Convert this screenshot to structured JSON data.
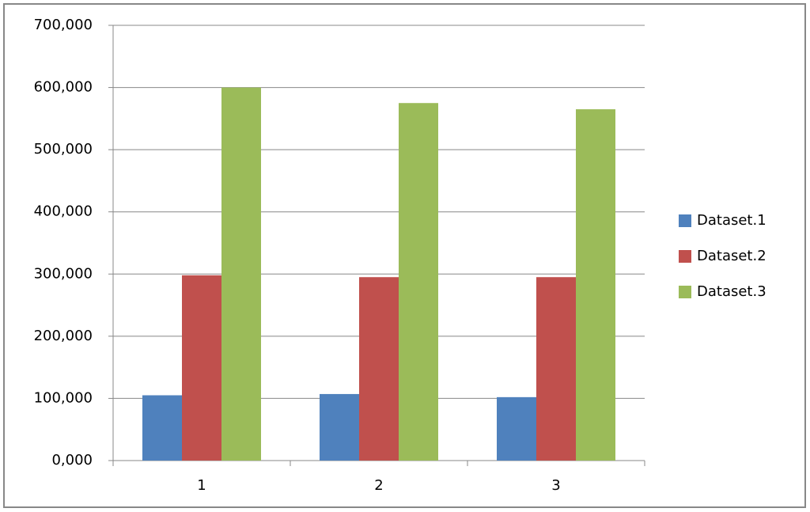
{
  "chart_data": {
    "type": "bar",
    "categories": [
      "1",
      "2",
      "3"
    ],
    "series": [
      {
        "name": "Dataset.1",
        "color": "#4f81bd",
        "values": [
          105000,
          107000,
          102000
        ]
      },
      {
        "name": "Dataset.2",
        "color": "#c0504d",
        "values": [
          298000,
          295000,
          295000
        ]
      },
      {
        "name": "Dataset.3",
        "color": "#9bbb59",
        "values": [
          600000,
          575000,
          565000
        ]
      }
    ],
    "ylim": [
      0,
      700000
    ],
    "yticks": [
      {
        "value": 0,
        "label": "0,000"
      },
      {
        "value": 100000,
        "label": "100,000"
      },
      {
        "value": 200000,
        "label": "200,000"
      },
      {
        "value": 300000,
        "label": "300,000"
      },
      {
        "value": 400000,
        "label": "400,000"
      },
      {
        "value": 500000,
        "label": "500,000"
      },
      {
        "value": 600000,
        "label": "600,000"
      },
      {
        "value": 700000,
        "label": "700,000"
      }
    ],
    "grid": true,
    "legend": "right"
  }
}
